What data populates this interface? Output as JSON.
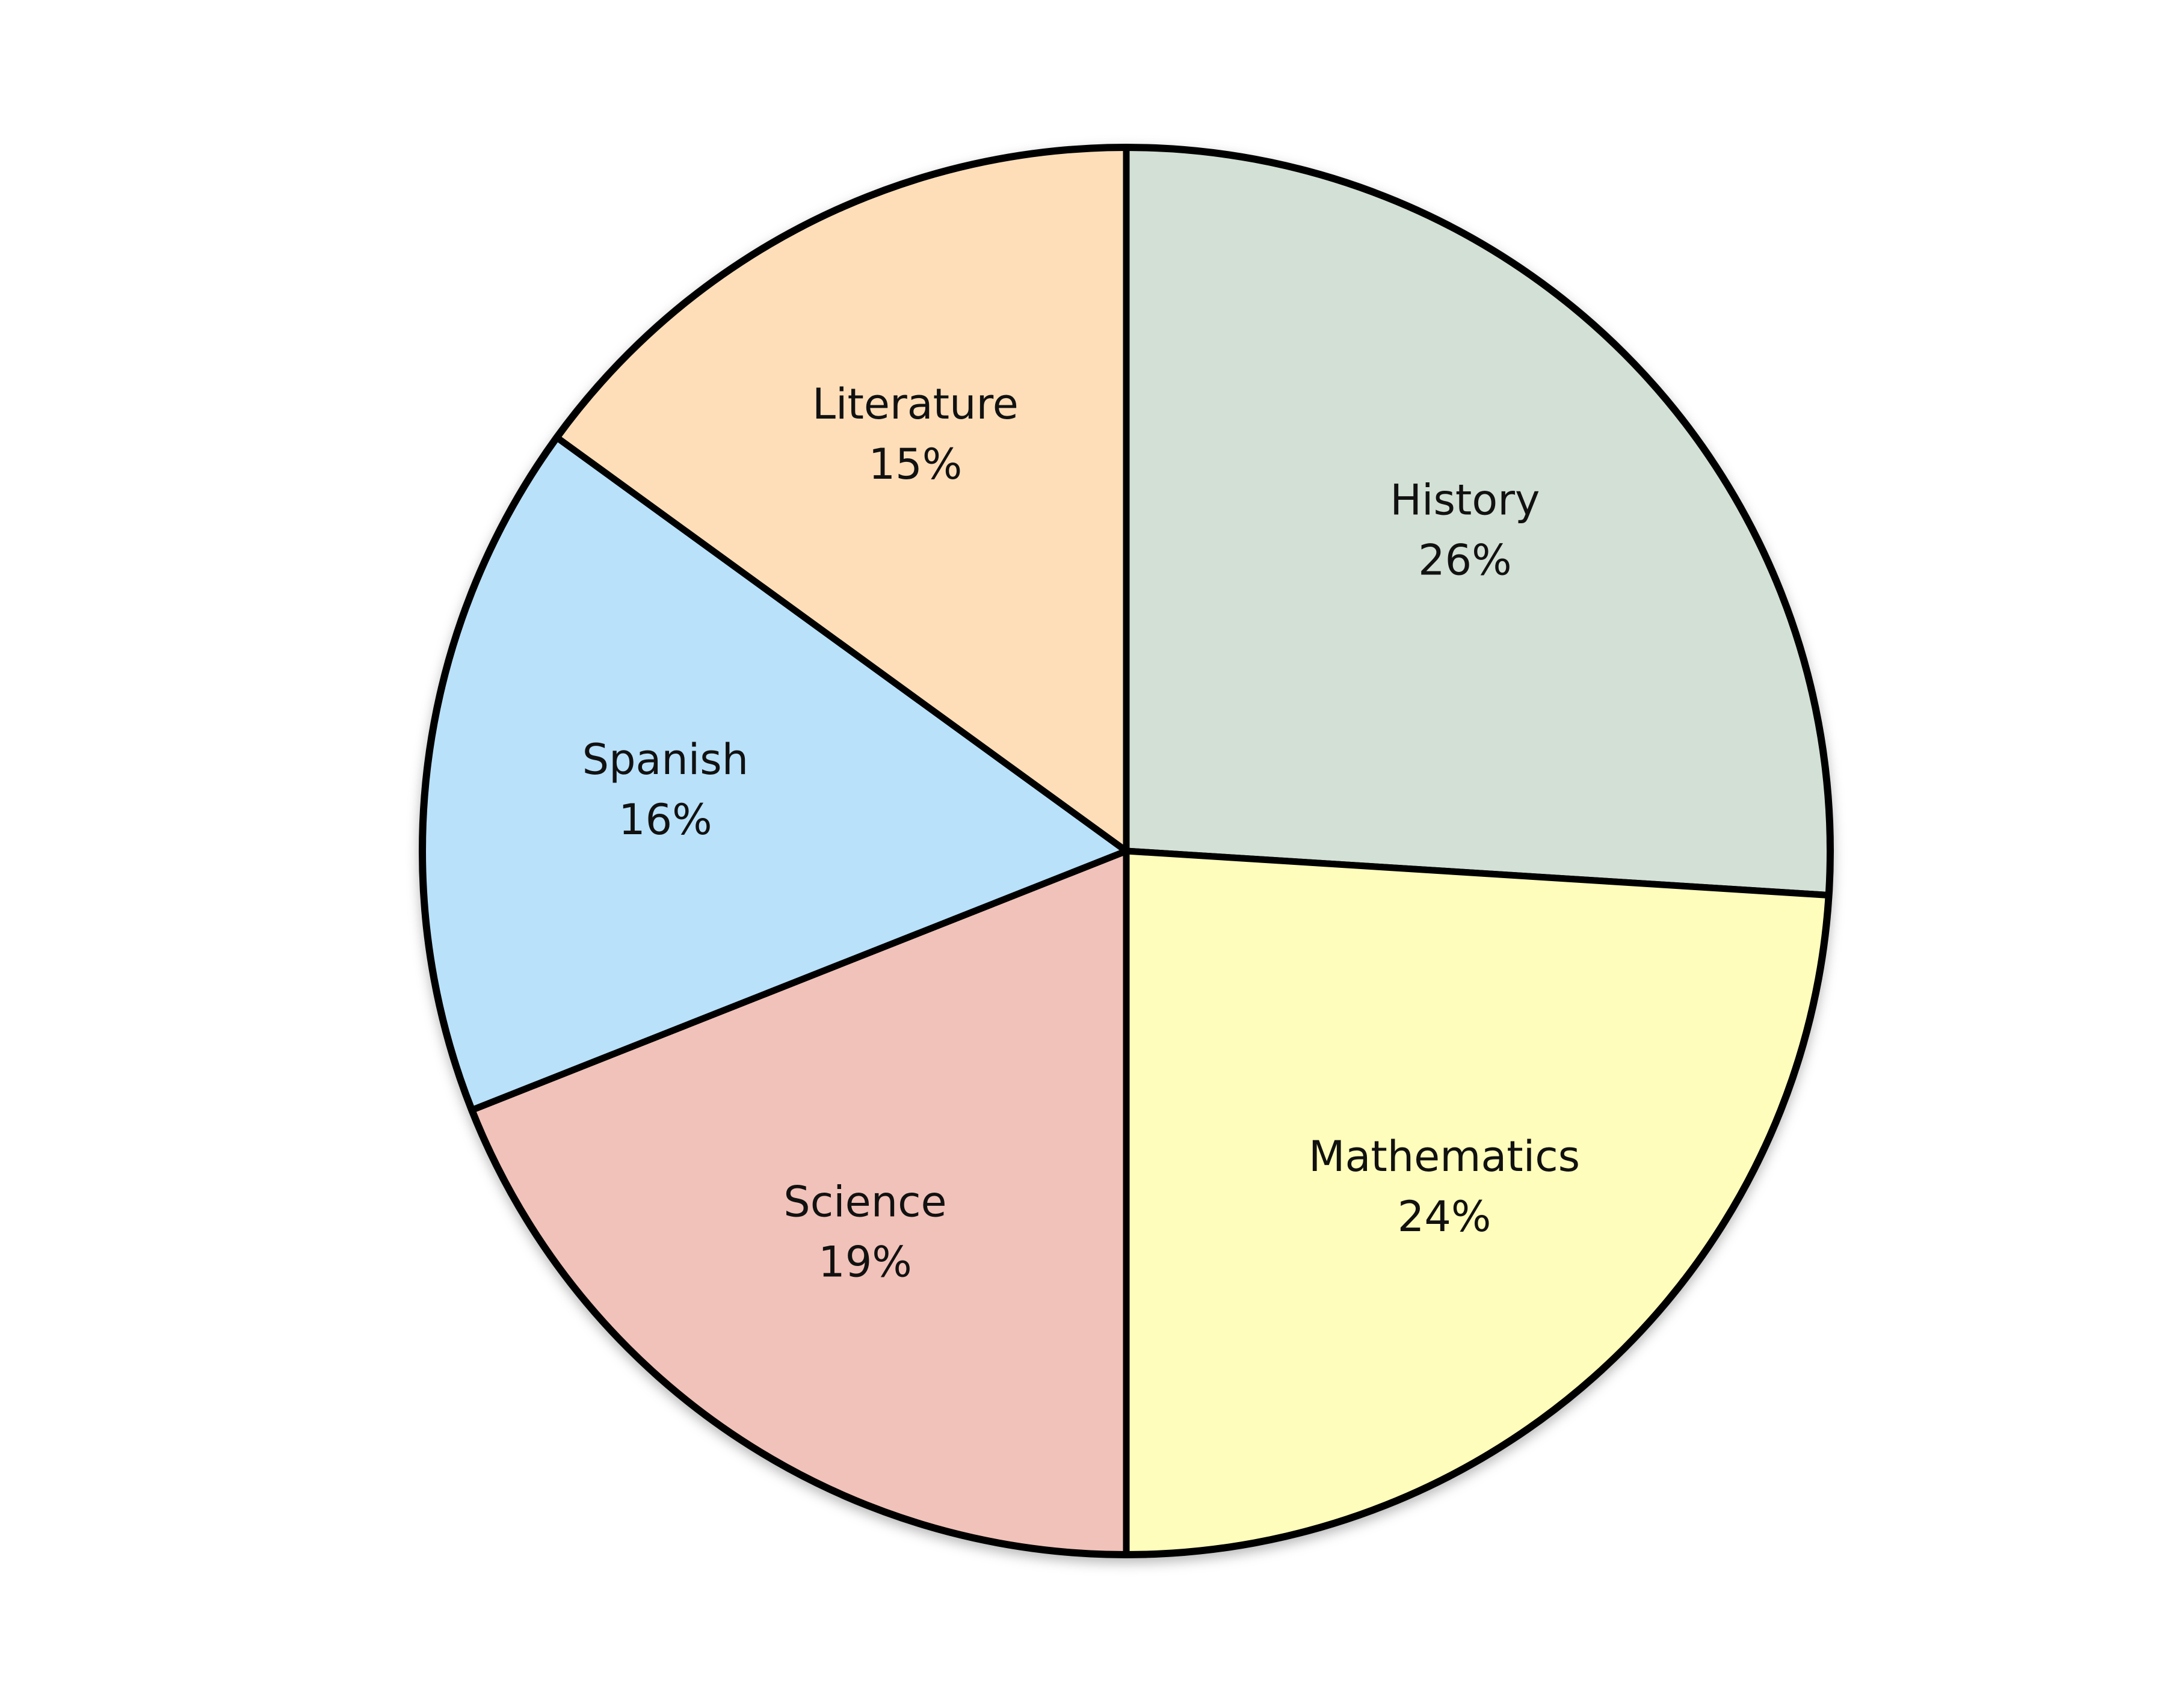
{
  "chart_data": {
    "type": "pie",
    "title": "",
    "start_direction": "up",
    "order": "clockwise",
    "slices": [
      {
        "label": "History",
        "value": 26,
        "display": "26%",
        "color": "#D3E0D5"
      },
      {
        "label": "Mathematics",
        "value": 24,
        "display": "24%",
        "color": "#FEFDBB"
      },
      {
        "label": "Science",
        "value": 19,
        "display": "19%",
        "color": "#F1C2B9"
      },
      {
        "label": "Spanish",
        "value": 16,
        "display": "16%",
        "color": "#B9E1FA"
      },
      {
        "label": "Literature",
        "value": 15,
        "display": "15%",
        "color": "#FDDEB9"
      }
    ]
  }
}
